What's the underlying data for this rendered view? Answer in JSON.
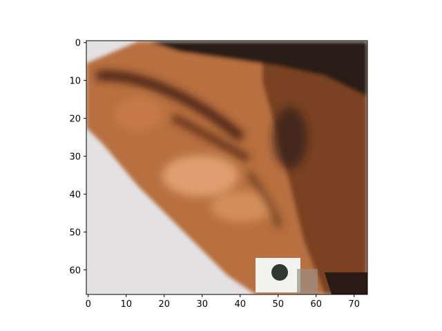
{
  "image": {
    "type": "heatmap",
    "depiction": "ear",
    "palette": {
      "background": "#e4e1e3",
      "skin_dark": "#6b3a1f",
      "skin_mid": "#b8703f",
      "skin_light": "#e2a374",
      "hair": "#2a1a14",
      "earring": "#f2f3ee"
    }
  },
  "chart_data": {
    "type": "heatmap",
    "xlim": [
      -0.5,
      73.5
    ],
    "ylim": [
      66.5,
      -0.5
    ],
    "x_ticks": [
      "0",
      "10",
      "20",
      "30",
      "40",
      "50",
      "60",
      "70"
    ],
    "y_ticks": [
      "0",
      "10",
      "20",
      "30",
      "40",
      "50",
      "60"
    ],
    "grid": false,
    "legend": "none"
  }
}
